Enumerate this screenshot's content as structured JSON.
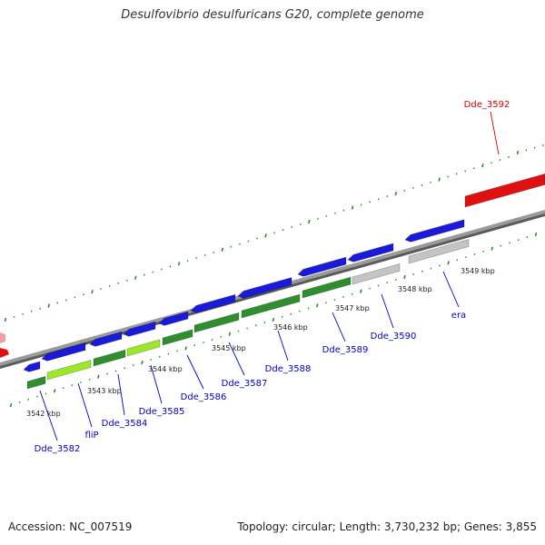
{
  "title": "Desulfovibrio desulfuricans G20, complete genome",
  "footer": {
    "accession": "Accession: NC_007519",
    "summary": "Topology: circular; Length: 3,730,232 bp; Genes: 3,855"
  },
  "colors": {
    "backbone": "#8c8c8c",
    "tick": "#2e8b2e",
    "gene_blue": "#1a1adb",
    "gene_red": "#e01010",
    "cds_green": "#2f8f2f",
    "cds_lightgreen": "#9be82a",
    "cds_gray": "#c4c4c4",
    "label_blue": "#0000cc",
    "label_red": "#d40000"
  },
  "genes": [
    {
      "name": "Dde_3582",
      "label_color": "blue"
    },
    {
      "name": "fliP",
      "label_color": "blue"
    },
    {
      "name": "Dde_3584",
      "label_color": "blue"
    },
    {
      "name": "Dde_3585",
      "label_color": "blue"
    },
    {
      "name": "Dde_3586",
      "label_color": "blue"
    },
    {
      "name": "Dde_3587",
      "label_color": "blue"
    },
    {
      "name": "Dde_3588",
      "label_color": "blue"
    },
    {
      "name": "Dde_3589",
      "label_color": "blue"
    },
    {
      "name": "Dde_3590",
      "label_color": "blue"
    },
    {
      "name": "era",
      "label_color": "blue"
    },
    {
      "name": "Dde_3592",
      "label_color": "red"
    }
  ],
  "kbp_ticks": [
    "3542 kbp",
    "3543 kbp",
    "3544 kbp",
    "3545 kbp",
    "3546 kbp",
    "3547 kbp",
    "3548 kbp",
    "3549 kbp"
  ]
}
